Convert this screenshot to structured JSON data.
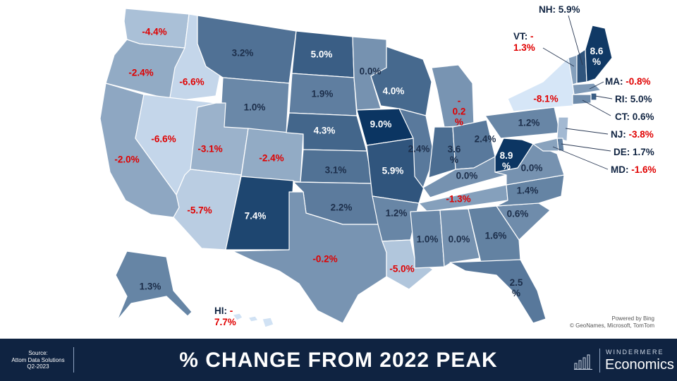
{
  "title": "% CHANGE FROM 2022 PEAK",
  "source": {
    "line1": "Source:",
    "line2": "Attom Data Solutions",
    "line3": "Q2-2023"
  },
  "credit": {
    "line1": "Powered by Bing",
    "line2": "© GeoNames, Microsoft, TomTom"
  },
  "logo": {
    "brand": "WINDERMERE",
    "name": "Economics"
  },
  "colors": {
    "scale_lightest": "#d6e6f7",
    "scale_darkest": "#0b3562",
    "negative_text": "#e00000",
    "footer_bg": "#0f2341"
  },
  "states": [
    {
      "code": "WA",
      "label": "-4.4%",
      "value": -4.4
    },
    {
      "code": "OR",
      "label": "-2.4%",
      "value": -2.4
    },
    {
      "code": "CA",
      "label": "-2.0%",
      "value": -2.0
    },
    {
      "code": "ID",
      "label": "-6.6%",
      "value": -6.6
    },
    {
      "code": "NV",
      "label": "-6.6%",
      "value": -6.6
    },
    {
      "code": "MT",
      "label": "3.2%",
      "value": 3.2
    },
    {
      "code": "WY",
      "label": "1.0%",
      "value": 1.0
    },
    {
      "code": "UT",
      "label": "-3.1%",
      "value": -3.1
    },
    {
      "code": "AZ",
      "label": "-5.7%",
      "value": -5.7
    },
    {
      "code": "CO",
      "label": "-2.4%",
      "value": -2.4
    },
    {
      "code": "NM",
      "label": "7.4%",
      "value": 7.4
    },
    {
      "code": "ND",
      "label": "5.0%",
      "value": 5.0
    },
    {
      "code": "SD",
      "label": "1.9%",
      "value": 1.9
    },
    {
      "code": "NE",
      "label": "4.3%",
      "value": 4.3
    },
    {
      "code": "KS",
      "label": "3.1%",
      "value": 3.1
    },
    {
      "code": "OK",
      "label": "2.2%",
      "value": 2.2
    },
    {
      "code": "TX",
      "label": "-0.2%",
      "value": -0.2
    },
    {
      "code": "MN",
      "label": "0.0%",
      "value": 0.0
    },
    {
      "code": "IA",
      "label": "9.0%",
      "value": 9.0
    },
    {
      "code": "MO",
      "label": "5.9%",
      "value": 5.9
    },
    {
      "code": "AR",
      "label": "1.2%",
      "value": 1.2
    },
    {
      "code": "LA",
      "label": "-5.0%",
      "value": -5.0
    },
    {
      "code": "WI",
      "label": "4.0%",
      "value": 4.0
    },
    {
      "code": "IL",
      "label": "2.4%",
      "value": 2.4
    },
    {
      "code": "MI",
      "label": "-0.2%",
      "value": -0.2
    },
    {
      "code": "IN",
      "label": "3.6%",
      "value": 3.6
    },
    {
      "code": "OH",
      "label": "2.4%",
      "value": 2.4
    },
    {
      "code": "KY",
      "label": "0.0%",
      "value": 0.0
    },
    {
      "code": "TN",
      "label": "-1.3%",
      "value": -1.3
    },
    {
      "code": "MS",
      "label": "1.0%",
      "value": 1.0
    },
    {
      "code": "AL",
      "label": "0.0%",
      "value": 0.0
    },
    {
      "code": "GA",
      "label": "1.6%",
      "value": 1.6
    },
    {
      "code": "FL",
      "label": "2.5%",
      "value": 2.5
    },
    {
      "code": "SC",
      "label": "0.6%",
      "value": 0.6
    },
    {
      "code": "NC",
      "label": "1.4%",
      "value": 1.4
    },
    {
      "code": "VA",
      "label": "0.0%",
      "value": 0.0
    },
    {
      "code": "WV",
      "label": "8.9%",
      "value": 8.9
    },
    {
      "code": "PA",
      "label": "1.2%",
      "value": 1.2
    },
    {
      "code": "NY",
      "label": "-8.1%",
      "value": -8.1
    },
    {
      "code": "VT",
      "label": "-1.3%",
      "value": -1.3
    },
    {
      "code": "NH",
      "label": "5.9%",
      "value": 5.9
    },
    {
      "code": "ME",
      "label": "8.6%",
      "value": 8.6
    },
    {
      "code": "MA",
      "label": "-0.8%",
      "value": -0.8
    },
    {
      "code": "RI",
      "label": "5.0%",
      "value": 5.0
    },
    {
      "code": "CT",
      "label": "0.6%",
      "value": 0.6
    },
    {
      "code": "NJ",
      "label": "-3.8%",
      "value": -3.8
    },
    {
      "code": "DE",
      "label": "1.7%",
      "value": 1.7
    },
    {
      "code": "MD",
      "label": "-1.6%",
      "value": -1.6
    },
    {
      "code": "AK",
      "label": "1.3%",
      "value": 1.3
    },
    {
      "code": "HI",
      "label": "-7.7%",
      "value": -7.7
    }
  ],
  "callouts": [
    {
      "code": "NH",
      "prefix": "NH:",
      "value_text": "5.9%"
    },
    {
      "code": "VT",
      "prefix": "VT:",
      "value_text": "-1.3%"
    },
    {
      "code": "MA",
      "prefix": "MA:",
      "value_text": "-0.8%"
    },
    {
      "code": "RI",
      "prefix": "RI:",
      "value_text": "5.0%"
    },
    {
      "code": "CT",
      "prefix": "CT:",
      "value_text": "0.6%"
    },
    {
      "code": "NJ",
      "prefix": "NJ:",
      "value_text": "-3.8%"
    },
    {
      "code": "DE",
      "prefix": "DE:",
      "value_text": "1.7%"
    },
    {
      "code": "MD",
      "prefix": "MD:",
      "value_text": "-1.6%"
    },
    {
      "code": "HI",
      "prefix": "HI:",
      "value_text": "-7.7%"
    }
  ]
}
